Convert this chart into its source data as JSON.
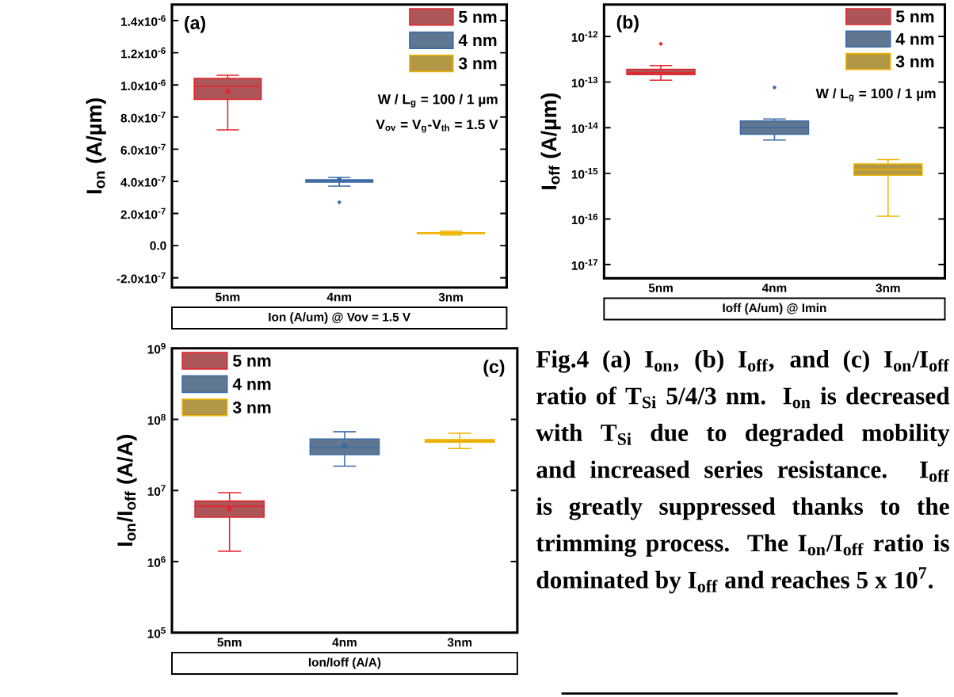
{
  "chart_data": [
    {
      "type": "box",
      "categories": [
        "5nm",
        "4nm",
        "3nm"
      ],
      "xlabel": "Ion (A/um) @ Vov = 1.5 V",
      "ylabel": "I$_{on}$ (A/µm)",
      "legend": "top right",
      "ylim": [
        -2.6e-07,
        1.5e-06
      ],
      "yticks": [
        {
          "value": -2e-07,
          "label": "-2.0x10$^{-7}$"
        },
        {
          "value": 0,
          "label": "0.0"
        },
        {
          "value": 2e-07,
          "label": "2.0x10$^{-7}$"
        },
        {
          "value": 4e-07,
          "label": "4.0x10$^{-7}$"
        },
        {
          "value": 6e-07,
          "label": "6.0x10$^{-7}$"
        },
        {
          "value": 8e-07,
          "label": "8.0x10$^{-7}$"
        },
        {
          "value": 1e-06,
          "label": "1.0x10$^{-6}$"
        },
        {
          "value": 1.2e-06,
          "label": "1.2x10$^{-6}$"
        },
        {
          "value": 1.4e-06,
          "label": "1.4x10$^{-6}$"
        }
      ],
      "annotations": [
        "(a)",
        "W / L$_{g}$ = 100 / 1 µm",
        "V$_{ov}$ = V$_{g}$-V$_{th}$ = 1.5 V"
      ],
      "series": [
        {
          "name": "5 nm",
          "color": "#e3242b",
          "boxes": [
            {
              "low": 7.2e-07,
              "q1": 9.1e-07,
              "median": 9.9e-07,
              "q3": 1.04e-06,
              "high": 1.06e-06,
              "mean": 9.6e-07
            },
            null,
            null
          ]
        },
        {
          "name": "4 nm",
          "color": "#3a6aa6",
          "boxes": [
            null,
            {
              "low": 3.7e-07,
              "q1": 3.95e-07,
              "median": 4.05e-07,
              "q3": 4.1e-07,
              "high": 4.25e-07,
              "mean": 4.1e-07,
              "outliers": [
                2.7e-07
              ]
            },
            null
          ]
        },
        {
          "name": "3 nm",
          "color": "#f0b400",
          "boxes": [
            null,
            null,
            {
              "low": 6.6e-08,
              "q1": 7.5e-08,
              "median": 7.8e-08,
              "q3": 8.1e-08,
              "high": 9e-08
            }
          ]
        }
      ]
    },
    {
      "type": "box",
      "categories": [
        "5nm",
        "4nm",
        "3nm"
      ],
      "xlabel": "Ioff (A/um) @ Imin",
      "ylabel": "I$_{off}$ (A/µm)",
      "legend": "top right",
      "log": true,
      "ylim": [
        5e-18,
        5e-12
      ],
      "yticks": [
        {
          "value": 1e-17,
          "label": "10$^{-17}$"
        },
        {
          "value": 1e-16,
          "label": "10$^{-16}$"
        },
        {
          "value": 1e-15,
          "label": "10$^{-15}$"
        },
        {
          "value": 1e-14,
          "label": "10$^{-14}$"
        },
        {
          "value": 1e-13,
          "label": "10$^{-13}$"
        },
        {
          "value": 1e-12,
          "label": "10$^{-12}$"
        }
      ],
      "annotations": [
        "(b)",
        "W / L$_{g}$ = 100 / 1 µm"
      ],
      "series": [
        {
          "name": "5 nm",
          "color": "#e3242b",
          "boxes": [
            {
              "low": 1.1e-13,
              "q1": 1.45e-13,
              "median": 1.6e-13,
              "q3": 1.9e-13,
              "high": 2.3e-13,
              "outliers": [
                6.9e-13
              ]
            },
            null,
            null
          ]
        },
        {
          "name": "4 nm",
          "color": "#3a6aa6",
          "boxes": [
            null,
            {
              "low": 5.4e-15,
              "q1": 7.2e-15,
              "median": 1e-14,
              "q3": 1.4e-14,
              "high": 1.55e-14,
              "outliers": [
                7.6e-14
              ]
            },
            null
          ]
        },
        {
          "name": "3 nm",
          "color": "#f0b400",
          "boxes": [
            null,
            null,
            {
              "low": 1.15e-16,
              "q1": 9.1e-16,
              "median": 1.2e-15,
              "q3": 1.6e-15,
              "high": 2e-15
            }
          ]
        }
      ]
    },
    {
      "type": "box",
      "categories": [
        "5nm",
        "4nm",
        "3nm"
      ],
      "xlabel": "Ion/Ioff (A/A)",
      "ylabel": "I$_{on}$/I$_{off}$ (A/A)",
      "legend": "top left",
      "log": true,
      "ylim": [
        100000.0,
        1000000000.0
      ],
      "yticks": [
        {
          "value": 100000.0,
          "label": "10$^{5}$"
        },
        {
          "value": 1000000.0,
          "label": "10$^{6}$"
        },
        {
          "value": 10000000.0,
          "label": "10$^{7}$"
        },
        {
          "value": 100000000.0,
          "label": "10$^{8}$"
        },
        {
          "value": 1000000000.0,
          "label": "10$^{9}$"
        }
      ],
      "annotations": [
        "(c)"
      ],
      "series": [
        {
          "name": "5 nm",
          "color": "#e3242b",
          "boxes": [
            {
              "low": 1400000.0,
              "q1": 4200000.0,
              "median": 6000000.0,
              "q3": 7100000.0,
              "high": 9300000.0,
              "mean": 5500000.0
            },
            null,
            null
          ]
        },
        {
          "name": "4 nm",
          "color": "#3a6aa6",
          "boxes": [
            null,
            {
              "low": 22000000.0,
              "q1": 32000000.0,
              "median": 40000000.0,
              "q3": 53000000.0,
              "high": 67000000.0,
              "mean": 43000000.0
            },
            null
          ]
        },
        {
          "name": "3 nm",
          "color": "#f0b400",
          "boxes": [
            null,
            null,
            {
              "low": 39000000.0,
              "q1": 48000000.0,
              "median": 50000000.0,
              "q3": 52000000.0,
              "high": 64000000.0
            }
          ]
        }
      ]
    },
    {
      "type": "other",
      "annotations": [
        "Fig.4 (a) I$_{on}$, (b) I$_{off}$, and (c) I$_{on}$/I$_{off}$ ratio of T$_{Si}$ 5/4/3 nm. I$_{on}$ is decreased with T$_{Si}$ due to degraded mobility and increased series resistance. I$_{off}$ is greatly suppressed thanks to the trimming process. The I$_{on}$/I$_{off}$ ratio is dominated by I$_{off}$ and reaches 5 x 10$^{7}$."
      ]
    }
  ]
}
